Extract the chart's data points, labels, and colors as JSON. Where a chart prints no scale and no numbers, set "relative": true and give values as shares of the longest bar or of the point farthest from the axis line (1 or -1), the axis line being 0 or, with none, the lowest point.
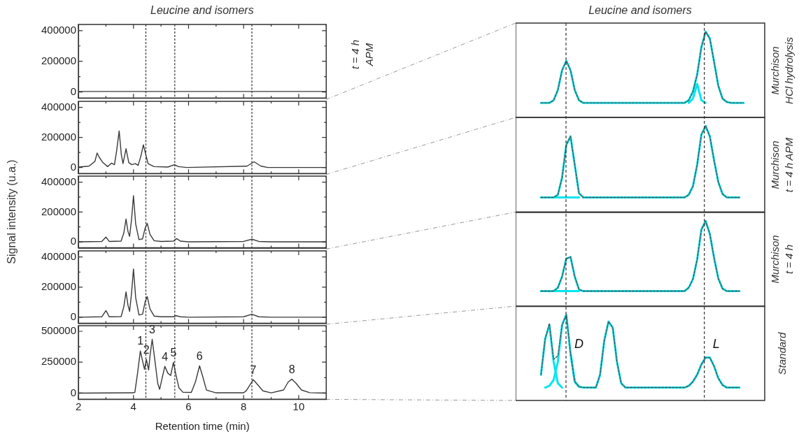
{
  "chart_data": [
    {
      "type": "line",
      "title": "Leucine and isomers",
      "annotations": [
        "t = 4 h\nAPM"
      ],
      "x": [
        2,
        11
      ],
      "xlim": [
        2,
        11
      ],
      "xticks": [
        2,
        {
          "value": 3,
          "label": null
        },
        4,
        {
          "value": 5,
          "label": null
        },
        6,
        {
          "value": 7,
          "label": null
        },
        8,
        {
          "value": 9,
          "label": null
        },
        10,
        {
          "value": 11,
          "label": null
        }
      ],
      "ylim": [
        -40000,
        440000
      ],
      "yticks": [
        0,
        {
          "value": 100000,
          "label": null
        },
        200000,
        {
          "value": 300000,
          "label": null
        },
        400000
      ],
      "tick_labels": "y",
      "ref_lines": [
        {
          "axis": "x",
          "value": 4.45,
          "color": "#333333",
          "line_style": "dashed"
        },
        {
          "axis": "x",
          "value": 5.5,
          "color": "#333333",
          "line_style": "dashed"
        },
        {
          "axis": "x",
          "value": 8.3,
          "color": "#333333",
          "line_style": "dashed"
        }
      ],
      "series": [
        {
          "color": "#3a3a3a",
          "values": [
            3000,
            3000
          ]
        }
      ]
    },
    {
      "type": "line",
      "x": [
        2,
        2.38,
        2.5,
        2.6,
        2.68,
        2.76,
        2.89,
        3.06,
        3.2,
        3.31,
        3.39,
        3.48,
        3.56,
        3.62,
        3.73,
        3.83,
        3.94,
        4.07,
        4.17,
        4.28,
        4.36,
        4.45,
        4.53,
        4.74,
        5.25,
        5.49,
        5.63,
        5.93,
        8.12,
        8.38,
        8.63,
        8.88,
        11
      ],
      "xlim": [
        2,
        11
      ],
      "xticks": [
        2,
        {
          "value": 3,
          "label": null
        },
        4,
        {
          "value": 5,
          "label": null
        },
        6,
        {
          "value": 7,
          "label": null
        },
        8,
        {
          "value": 9,
          "label": null
        },
        10,
        {
          "value": 11,
          "label": null
        }
      ],
      "ylim": [
        -40000,
        440000
      ],
      "yticks": [
        0,
        {
          "value": 100000,
          "label": null
        },
        200000,
        {
          "value": 300000,
          "label": null
        },
        400000
      ],
      "tick_labels": "y",
      "ref_lines": [
        {
          "axis": "x",
          "value": 4.45,
          "color": "#333333",
          "line_style": "dashed"
        },
        {
          "axis": "x",
          "value": 5.5,
          "color": "#333333",
          "line_style": "dashed"
        },
        {
          "axis": "x",
          "value": 8.3,
          "color": "#333333",
          "line_style": "dashed"
        }
      ],
      "series": [
        {
          "color": "#3a3a3a",
          "values": [
            3000,
            9000,
            26000,
            41000,
            96000,
            67000,
            33000,
            6000,
            29000,
            19000,
            113000,
            243000,
            84000,
            26000,
            125000,
            33000,
            19000,
            26000,
            14000,
            84000,
            151000,
            84000,
            26000,
            6000,
            3000,
            19000,
            6000,
            0,
            9000,
            38000,
            9000,
            0,
            0
          ]
        }
      ]
    },
    {
      "type": "line",
      "ylabel": "Signal intensity (u.a.)",
      "x": [
        2,
        2.85,
        3.0,
        3.12,
        3.55,
        3.65,
        3.73,
        3.8,
        3.86,
        3.93,
        4.0,
        4.08,
        4.2,
        4.33,
        4.42,
        4.5,
        4.6,
        4.75,
        5.0,
        5.45,
        5.57,
        5.7,
        6.0,
        8.0,
        8.3,
        8.55,
        9.0,
        11
      ],
      "xlim": [
        2,
        11
      ],
      "xticks": [
        2,
        {
          "value": 3,
          "label": null
        },
        4,
        {
          "value": 5,
          "label": null
        },
        6,
        {
          "value": 7,
          "label": null
        },
        8,
        {
          "value": 9,
          "label": null
        },
        10,
        {
          "value": 11,
          "label": null
        }
      ],
      "ylim": [
        -40000,
        440000
      ],
      "yticks": [
        0,
        {
          "value": 100000,
          "label": null
        },
        200000,
        {
          "value": 300000,
          "label": null
        },
        400000
      ],
      "tick_labels": "y",
      "ref_lines": [
        {
          "axis": "x",
          "value": 4.45,
          "color": "#333333",
          "line_style": "dashed"
        },
        {
          "axis": "x",
          "value": 5.5,
          "color": "#333333",
          "line_style": "dashed"
        },
        {
          "axis": "x",
          "value": 8.3,
          "color": "#333333",
          "line_style": "dashed"
        }
      ],
      "series": [
        {
          "color": "#3a3a3a",
          "values": [
            0,
            3000,
            32000,
            3000,
            5000,
            60000,
            153000,
            70000,
            37000,
            150000,
            309000,
            120000,
            15000,
            20000,
            90000,
            124000,
            50000,
            8000,
            3000,
            5000,
            22000,
            5000,
            0,
            3000,
            18000,
            3000,
            0,
            0
          ]
        }
      ]
    },
    {
      "type": "line",
      "x": [
        2,
        2.85,
        3.0,
        3.12,
        3.55,
        3.65,
        3.73,
        3.8,
        3.86,
        3.93,
        4.0,
        4.08,
        4.2,
        4.33,
        4.42,
        4.5,
        4.6,
        4.75,
        5.0,
        5.45,
        5.55,
        5.7,
        6.0,
        8.0,
        8.3,
        8.55,
        9.0,
        11
      ],
      "xlim": [
        2,
        11
      ],
      "xticks": [
        2,
        {
          "value": 3,
          "label": null
        },
        4,
        {
          "value": 5,
          "label": null
        },
        6,
        {
          "value": 7,
          "label": null
        },
        8,
        {
          "value": 9,
          "label": null
        },
        10,
        {
          "value": 11,
          "label": null
        }
      ],
      "ylim": [
        -40000,
        440000
      ],
      "yticks": [
        0,
        {
          "value": 100000,
          "label": null
        },
        200000,
        {
          "value": 300000,
          "label": null
        },
        400000
      ],
      "tick_labels": "y",
      "ref_lines": [
        {
          "axis": "x",
          "value": 4.45,
          "color": "#333333",
          "line_style": "dashed"
        },
        {
          "axis": "x",
          "value": 5.5,
          "color": "#333333",
          "line_style": "dashed"
        },
        {
          "axis": "x",
          "value": 8.3,
          "color": "#333333",
          "line_style": "dashed"
        }
      ],
      "series": [
        {
          "color": "#3a3a3a",
          "values": [
            0,
            3000,
            44000,
            3000,
            4000,
            70000,
            168000,
            80000,
            39000,
            160000,
            320000,
            130000,
            15000,
            20000,
            100000,
            137000,
            55000,
            8000,
            3000,
            3000,
            10000,
            3000,
            0,
            3000,
            20000,
            3000,
            0,
            0
          ]
        }
      ]
    },
    {
      "type": "line",
      "xlabel": "Retention time (min)",
      "x": [
        2,
        4.0,
        4.05,
        4.15,
        4.25,
        4.33,
        4.4,
        4.47,
        4.55,
        4.6,
        4.68,
        4.78,
        4.88,
        4.95,
        5.05,
        5.14,
        5.25,
        5.35,
        5.45,
        5.55,
        5.65,
        5.8,
        6.1,
        6.25,
        6.4,
        6.52,
        6.65,
        7.0,
        8.0,
        8.1,
        8.35,
        8.5,
        8.7,
        9.0,
        9.45,
        9.62,
        9.75,
        9.9,
        10.1,
        10.4,
        11
      ],
      "xlim": [
        2,
        11
      ],
      "xticks": [
        2,
        {
          "value": 3,
          "label": null
        },
        4,
        {
          "value": 5,
          "label": null
        },
        6,
        {
          "value": 7,
          "label": null
        },
        8,
        {
          "value": 9,
          "label": null
        },
        10,
        {
          "value": 11,
          "label": null
        }
      ],
      "ylim": [
        -50000,
        545000
      ],
      "yticks": [
        0,
        {
          "value": 125000,
          "label": null
        },
        250000,
        {
          "value": 375000,
          "label": null
        },
        500000
      ],
      "ref_lines": [
        {
          "axis": "x",
          "value": 4.45,
          "color": "#333333",
          "line_style": "dashed"
        },
        {
          "axis": "x",
          "value": 5.5,
          "color": "#333333",
          "line_style": "dashed"
        },
        {
          "axis": "x",
          "value": 8.3,
          "color": "#333333",
          "line_style": "dashed"
        }
      ],
      "annotations": [
        {
          "text": "1",
          "x": 4.25,
          "y": 341000
        },
        {
          "text": "2",
          "x": 4.47,
          "y": 271000
        },
        {
          "text": "3",
          "x": 4.68,
          "y": 435000
        },
        {
          "text": "4",
          "x": 5.14,
          "y": 216000
        },
        {
          "text": "5",
          "x": 5.45,
          "y": 248000
        },
        {
          "text": "6",
          "x": 6.4,
          "y": 220000
        },
        {
          "text": "7",
          "x": 8.35,
          "y": 108000
        },
        {
          "text": "8",
          "x": 9.75,
          "y": 112000
        }
      ],
      "series": [
        {
          "color": "#3a3a3a",
          "values": [
            0,
            2000,
            6000,
            164000,
            341000,
            260000,
            192000,
            271000,
            187000,
            300000,
            435000,
            260000,
            80000,
            30000,
            130000,
            216000,
            160000,
            142000,
            248000,
            140000,
            43000,
            6000,
            5000,
            90000,
            220000,
            130000,
            24000,
            2000,
            2000,
            20000,
            108000,
            70000,
            18000,
            2000,
            25000,
            90000,
            112000,
            80000,
            25000,
            3000,
            0
          ]
        }
      ]
    },
    {
      "type": "line",
      "relative": true,
      "title": "Leucine and isomers",
      "annotations": [
        "Murchison\nHCl hydrolysis"
      ],
      "tick_labels": false,
      "categories": [
        null,
        null,
        null,
        null,
        null,
        null,
        null,
        null,
        null,
        null,
        null,
        null,
        null,
        null,
        null,
        null,
        null,
        null,
        null,
        null,
        null,
        null,
        null,
        null,
        null,
        null,
        null,
        null,
        null,
        null,
        null,
        null,
        null,
        null,
        null,
        null,
        null,
        null,
        null,
        null,
        null,
        null,
        null,
        null,
        null,
        null,
        null,
        null,
        null,
        null,
        null,
        null,
        null,
        null,
        null,
        null,
        null,
        null,
        null,
        null
      ],
      "series": [
        {
          "color": "#00e5ee",
          "values": [
            null,
            null,
            null,
            null,
            null,
            null,
            0.17,
            0.17,
            0.17,
            0.2,
            0.32,
            0.55,
            0.66,
            0.55,
            0.32,
            0.2,
            0.17,
            0.17,
            0.17,
            0.17,
            0.17,
            0.17,
            0.17,
            0.17,
            0.17,
            0.17,
            0.17,
            0.17,
            0.17,
            0.17,
            0.17,
            0.17,
            0.17,
            0.17,
            0.17,
            0.17,
            0.17,
            0.17,
            0.17,
            0.17,
            0.17,
            0.2,
            0.3,
            0.5,
            0.82,
            1,
            0.92,
            0.65,
            0.37,
            0.22,
            0.18,
            0.17,
            0.17,
            0.17,
            0.17,
            null,
            null,
            null,
            null,
            null
          ]
        },
        {
          "color": "#00e5ee",
          "values": [
            null,
            null,
            null,
            null,
            null,
            null,
            null,
            null,
            null,
            null,
            null,
            null,
            null,
            null,
            null,
            null,
            null,
            null,
            null,
            null,
            null,
            null,
            null,
            null,
            null,
            null,
            null,
            null,
            null,
            null,
            null,
            null,
            null,
            null,
            null,
            null,
            null,
            null,
            null,
            null,
            null,
            0.17,
            0.22,
            0.39,
            0.2,
            0.17,
            null,
            null,
            null,
            null,
            null,
            null,
            null,
            null,
            null,
            null,
            null,
            null,
            null,
            null
          ]
        },
        {
          "color": "#555555",
          "line_style": "dashed",
          "values": [
            null,
            null,
            null,
            null,
            null,
            null,
            0.17,
            0.17,
            0.17,
            0.2,
            0.32,
            0.55,
            0.66,
            0.55,
            0.32,
            0.2,
            0.17,
            0.17,
            0.17,
            0.17,
            0.17,
            0.17,
            0.17,
            0.17,
            0.17,
            0.17,
            0.17,
            0.17,
            0.17,
            0.17,
            0.17,
            0.17,
            0.17,
            0.17,
            0.17,
            0.17,
            0.17,
            0.17,
            0.17,
            0.17,
            0.17,
            0.2,
            0.3,
            0.5,
            0.82,
            1,
            0.92,
            0.65,
            0.37,
            0.22,
            0.18,
            0.17,
            0.17,
            0.17,
            0.17,
            null,
            null,
            null,
            null,
            null
          ]
        }
      ]
    },
    {
      "type": "line",
      "relative": true,
      "annotations": [
        "Murchison\nt = 4 h APM"
      ],
      "tick_labels": false,
      "categories": [
        null,
        null,
        null,
        null,
        null,
        null,
        null,
        null,
        null,
        null,
        null,
        null,
        null,
        null,
        null,
        null,
        null,
        null,
        null,
        null,
        null,
        null,
        null,
        null,
        null,
        null,
        null,
        null,
        null,
        null,
        null,
        null,
        null,
        null,
        null,
        null,
        null,
        null,
        null,
        null,
        null,
        null,
        null,
        null,
        null,
        null,
        null,
        null,
        null,
        null,
        null,
        null,
        null,
        null,
        null,
        null,
        null,
        null,
        null,
        null
      ],
      "series": [
        {
          "color": "#00e5ee",
          "values": [
            null,
            null,
            null,
            null,
            null,
            null,
            0.17,
            0.17,
            0.17,
            0.17,
            0.2,
            0.4,
            0.78,
            0.88,
            0.55,
            0.22,
            0.17,
            0.17,
            0.17,
            0.17,
            0.17,
            0.17,
            0.17,
            0.17,
            0.17,
            0.17,
            0.17,
            0.17,
            0.17,
            0.17,
            0.17,
            0.17,
            0.17,
            0.17,
            0.17,
            0.17,
            0.17,
            0.17,
            0.17,
            0.17,
            0.17,
            0.2,
            0.3,
            0.55,
            0.9,
            1,
            0.88,
            0.6,
            0.35,
            0.21,
            0.17,
            0.17,
            0.17,
            0.17,
            null,
            null,
            null,
            null,
            null,
            null
          ]
        },
        {
          "color": "#00e5ee",
          "values": [
            null,
            null,
            null,
            null,
            null,
            null,
            0.17,
            0.17,
            0.17,
            0.17,
            0.17,
            0.17,
            0.17,
            0.17,
            0.17,
            0.17,
            null,
            null,
            null,
            null,
            null,
            null,
            null,
            null,
            null,
            null,
            null,
            null,
            null,
            null,
            null,
            null,
            null,
            null,
            null,
            null,
            null,
            null,
            null,
            null,
            null,
            null,
            null,
            null,
            null,
            null,
            null,
            null,
            null,
            null,
            null,
            null,
            null,
            null,
            null,
            null,
            null,
            null,
            null,
            null
          ]
        },
        {
          "color": "#555555",
          "line_style": "dashed",
          "values": [
            null,
            null,
            null,
            null,
            null,
            null,
            0.17,
            0.17,
            0.17,
            0.17,
            0.2,
            0.4,
            0.78,
            0.88,
            0.55,
            0.22,
            0.17,
            0.17,
            0.17,
            0.17,
            0.17,
            0.17,
            0.17,
            0.17,
            0.17,
            0.17,
            0.17,
            0.17,
            0.17,
            0.17,
            0.17,
            0.17,
            0.17,
            0.17,
            0.17,
            0.17,
            0.17,
            0.17,
            0.17,
            0.17,
            0.17,
            0.2,
            0.3,
            0.55,
            0.9,
            1,
            0.88,
            0.6,
            0.35,
            0.21,
            0.17,
            0.17,
            0.17,
            0.17,
            null,
            null,
            null,
            null,
            null,
            null
          ]
        }
      ]
    },
    {
      "type": "line",
      "relative": true,
      "annotations": [
        "Murchison\nt = 4 h"
      ],
      "tick_labels": false,
      "categories": [
        null,
        null,
        null,
        null,
        null,
        null,
        null,
        null,
        null,
        null,
        null,
        null,
        null,
        null,
        null,
        null,
        null,
        null,
        null,
        null,
        null,
        null,
        null,
        null,
        null,
        null,
        null,
        null,
        null,
        null,
        null,
        null,
        null,
        null,
        null,
        null,
        null,
        null,
        null,
        null,
        null,
        null,
        null,
        null,
        null,
        null,
        null,
        null,
        null,
        null,
        null,
        null,
        null,
        null,
        null,
        null,
        null,
        null,
        null,
        null
      ],
      "series": [
        {
          "color": "#00e5ee",
          "values": [
            null,
            null,
            null,
            null,
            null,
            null,
            0.18,
            0.18,
            0.18,
            0.18,
            0.22,
            0.35,
            0.56,
            0.58,
            0.35,
            0.2,
            0.18,
            0.18,
            0.18,
            0.18,
            0.18,
            0.18,
            0.18,
            0.18,
            0.18,
            0.18,
            0.18,
            0.18,
            0.18,
            0.18,
            0.18,
            0.18,
            0.18,
            0.18,
            0.18,
            0.18,
            0.18,
            0.18,
            0.18,
            0.18,
            0.18,
            0.22,
            0.32,
            0.55,
            0.9,
            1,
            0.85,
            0.57,
            0.33,
            0.21,
            0.18,
            0.18,
            0.18,
            0.18,
            null,
            null,
            null,
            null,
            null,
            null
          ]
        },
        {
          "color": "#00e5ee",
          "values": [
            null,
            null,
            null,
            null,
            null,
            null,
            0.18,
            0.18,
            0.18,
            0.18,
            0.18,
            0.18,
            0.18,
            0.18,
            0.18,
            0.18,
            null,
            null,
            null,
            null,
            null,
            null,
            null,
            null,
            null,
            null,
            null,
            null,
            null,
            null,
            null,
            null,
            null,
            null,
            null,
            null,
            null,
            null,
            null,
            null,
            null,
            null,
            null,
            null,
            null,
            null,
            null,
            null,
            null,
            null,
            null,
            null,
            null,
            null,
            null,
            null,
            null,
            null,
            null,
            null
          ]
        },
        {
          "color": "#555555",
          "line_style": "dashed",
          "values": [
            null,
            null,
            null,
            null,
            null,
            null,
            0.18,
            0.18,
            0.18,
            0.18,
            0.22,
            0.35,
            0.56,
            0.58,
            0.35,
            0.2,
            0.18,
            0.18,
            0.18,
            0.18,
            0.18,
            0.18,
            0.18,
            0.18,
            0.18,
            0.18,
            0.18,
            0.18,
            0.18,
            0.18,
            0.18,
            0.18,
            0.18,
            0.18,
            0.18,
            0.18,
            0.18,
            0.18,
            0.18,
            0.18,
            0.18,
            0.22,
            0.32,
            0.55,
            0.9,
            1,
            0.85,
            0.57,
            0.33,
            0.21,
            0.18,
            0.18,
            0.18,
            0.18,
            null,
            null,
            null,
            null,
            null,
            null
          ]
        }
      ]
    },
    {
      "type": "line",
      "relative": true,
      "annotations": [
        "Standard",
        "D",
        "L"
      ],
      "tick_labels": false,
      "categories": [
        null,
        null,
        null,
        null,
        null,
        null,
        null,
        null,
        null,
        null,
        null,
        null,
        null,
        null,
        null,
        null,
        null,
        null,
        null,
        null,
        null,
        null,
        null,
        null,
        null,
        null,
        null,
        null,
        null,
        null,
        null,
        null,
        null,
        null,
        null,
        null,
        null,
        null,
        null,
        null,
        null,
        null,
        null,
        null,
        null,
        null,
        null,
        null,
        null,
        null,
        null,
        null,
        null,
        null,
        null,
        null,
        null,
        null,
        null,
        null
      ],
      "series": [
        {
          "color": "#00e5ee",
          "values": [
            null,
            null,
            null,
            null,
            null,
            null,
            0.3,
            0.72,
            0.88,
            0.45,
            0.2,
            0.15,
            null,
            null,
            null,
            null,
            null,
            null,
            null,
            null,
            null,
            null,
            null,
            null,
            null,
            null,
            null,
            null,
            null,
            null,
            null,
            null,
            null,
            null,
            null,
            null,
            null,
            null,
            null,
            null,
            null,
            null,
            null,
            null,
            null,
            null,
            null,
            null,
            null,
            null,
            null,
            null,
            null,
            null,
            null,
            null,
            null,
            null,
            null,
            null
          ]
        },
        {
          "color": "#00e5ee",
          "values": [
            null,
            null,
            null,
            null,
            null,
            null,
            null,
            0.15,
            0.17,
            0.24,
            0.45,
            0.88,
            1,
            0.55,
            0.22,
            0.16,
            null,
            null,
            null,
            null,
            null,
            null,
            null,
            null,
            null,
            null,
            null,
            null,
            null,
            null,
            null,
            null,
            null,
            null,
            null,
            null,
            null,
            null,
            null,
            null,
            null,
            null,
            null,
            null,
            null,
            null,
            null,
            null,
            null,
            null,
            null,
            null,
            null,
            null,
            null,
            null,
            null,
            null,
            null,
            null
          ]
        },
        {
          "color": "#00e5ee",
          "values": [
            null,
            null,
            null,
            null,
            null,
            null,
            null,
            null,
            null,
            null,
            null,
            null,
            null,
            0.55,
            0.22,
            0.16,
            0.15,
            0.15,
            0.15,
            0.15,
            0.3,
            0.7,
            0.92,
            0.85,
            0.45,
            0.2,
            0.15,
            0.15,
            0.15,
            0.15,
            0.15,
            0.15,
            0.15,
            0.15,
            0.15,
            0.15,
            0.15,
            0.15,
            0.15,
            0.15,
            0.15,
            0.17,
            0.22,
            0.3,
            0.42,
            0.5,
            0.5,
            0.4,
            0.26,
            0.18,
            0.15,
            0.15,
            0.15,
            0.15,
            null,
            null,
            null,
            null,
            null,
            null
          ]
        },
        {
          "color": "#555555",
          "line_style": "dashed",
          "values": [
            null,
            null,
            null,
            null,
            null,
            null,
            0.3,
            0.72,
            0.9,
            0.48,
            0.52,
            0.88,
            1,
            0.55,
            0.22,
            0.16,
            0.15,
            0.15,
            0.15,
            0.15,
            0.3,
            0.7,
            0.92,
            0.85,
            0.45,
            0.2,
            0.15,
            0.15,
            0.15,
            0.15,
            0.15,
            0.15,
            0.15,
            0.15,
            0.15,
            0.15,
            0.15,
            0.15,
            0.15,
            0.15,
            0.15,
            0.17,
            0.22,
            0.3,
            0.42,
            0.5,
            0.5,
            0.4,
            0.26,
            0.18,
            0.15,
            0.15,
            0.15,
            0.15,
            null,
            null,
            null,
            null,
            null,
            null
          ]
        }
      ]
    }
  ]
}
